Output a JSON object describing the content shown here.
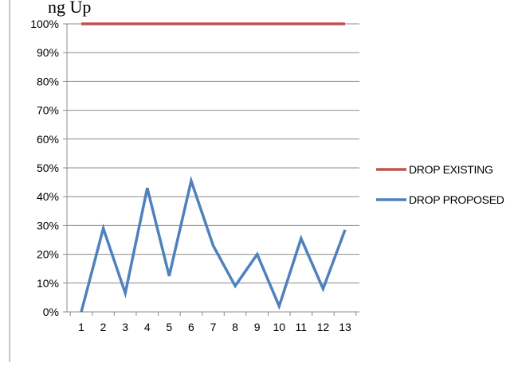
{
  "chart_data": {
    "type": "line",
    "title_fragment": "ng Up",
    "x": [
      1,
      2,
      3,
      4,
      5,
      6,
      7,
      8,
      9,
      10,
      11,
      12,
      13
    ],
    "ylim": [
      0,
      1
    ],
    "y_ticks": [
      "0%",
      "10%",
      "20%",
      "30%",
      "40%",
      "50%",
      "60%",
      "70%",
      "80%",
      "90%",
      "100%"
    ],
    "x_ticks": [
      "1",
      "2",
      "3",
      "4",
      "5",
      "6",
      "7",
      "8",
      "9",
      "10",
      "11",
      "12",
      "13"
    ],
    "grid": true,
    "legend_position": "right",
    "series": [
      {
        "name": "DROP EXISTING",
        "color": "#c0504d",
        "values": [
          1,
          1,
          1,
          1,
          1,
          1,
          1,
          1,
          1,
          1,
          1,
          1,
          1
        ]
      },
      {
        "name": "DROP PROPOSED",
        "color": "#4f81bd",
        "values": [
          0.0,
          0.29,
          0.065,
          0.43,
          0.125,
          0.455,
          0.23,
          0.09,
          0.2,
          0.02,
          0.255,
          0.08,
          0.285
        ]
      }
    ]
  }
}
